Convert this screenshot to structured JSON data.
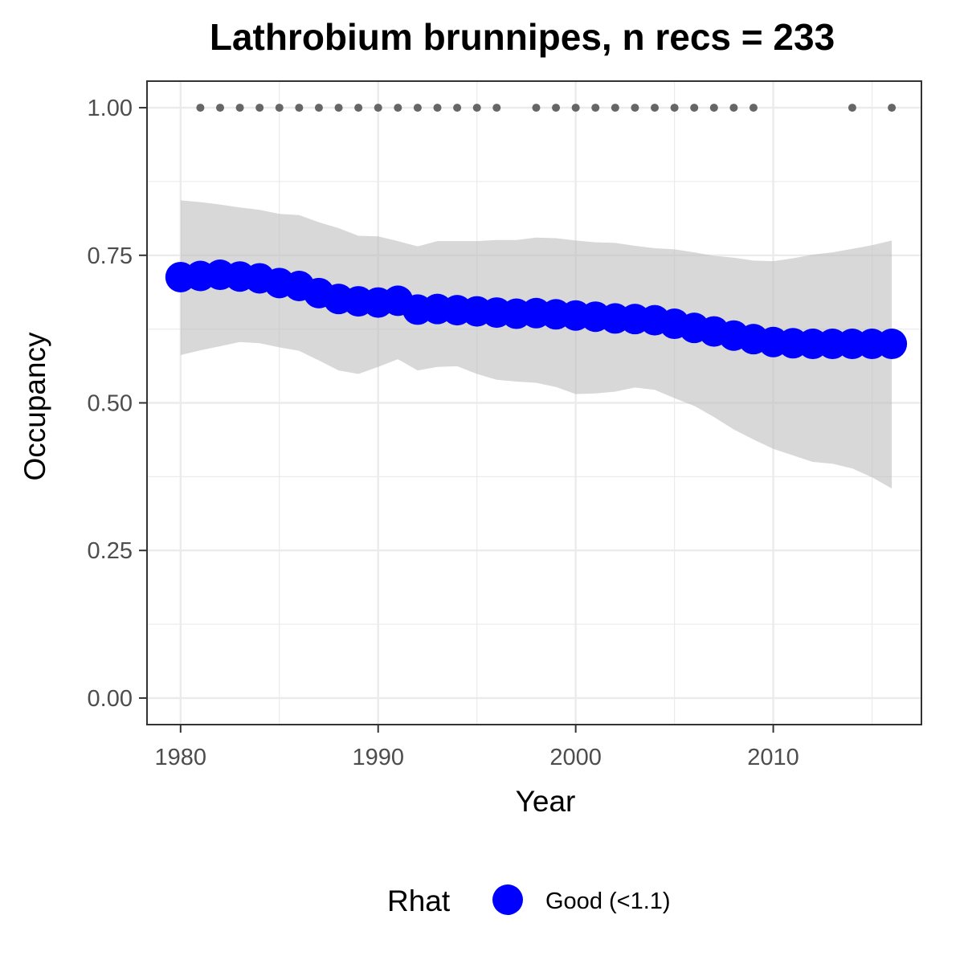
{
  "chart_data": {
    "type": "line",
    "title": "Lathrobium brunnipes, n recs = 233",
    "xlabel": "Year",
    "ylabel": "Occupancy",
    "xlim": [
      1978.3,
      2017.5
    ],
    "ylim": [
      -0.045,
      1.045
    ],
    "x_ticks": [
      1980,
      1990,
      2000,
      2010
    ],
    "x_tick_labels": [
      "1980",
      "1990",
      "2000",
      "2010"
    ],
    "y_ticks": [
      0,
      0.25,
      0.5,
      0.75,
      1.0
    ],
    "y_tick_labels": [
      "0.00",
      "0.25",
      "0.50",
      "0.75",
      "1.00"
    ],
    "grid": true,
    "series": [
      {
        "name": "Good (<1.1)",
        "x": [
          1980,
          1981,
          1982,
          1983,
          1984,
          1985,
          1986,
          1987,
          1988,
          1989,
          1990,
          1991,
          1992,
          1993,
          1994,
          1995,
          1996,
          1997,
          1998,
          1999,
          2000,
          2001,
          2002,
          2003,
          2004,
          2005,
          2006,
          2007,
          2008,
          2009,
          2010,
          2011,
          2012,
          2013,
          2014,
          2015,
          2016
        ],
        "y": [
          0.713,
          0.715,
          0.717,
          0.714,
          0.711,
          0.703,
          0.698,
          0.686,
          0.676,
          0.672,
          0.67,
          0.673,
          0.658,
          0.659,
          0.657,
          0.655,
          0.653,
          0.651,
          0.652,
          0.65,
          0.648,
          0.646,
          0.643,
          0.642,
          0.64,
          0.634,
          0.627,
          0.621,
          0.614,
          0.608,
          0.603,
          0.601,
          0.6,
          0.6,
          0.6,
          0.6,
          0.6
        ],
        "lower": [
          0.581,
          0.589,
          0.596,
          0.603,
          0.601,
          0.594,
          0.588,
          0.572,
          0.555,
          0.549,
          0.561,
          0.574,
          0.555,
          0.561,
          0.562,
          0.549,
          0.539,
          0.536,
          0.534,
          0.527,
          0.515,
          0.516,
          0.519,
          0.526,
          0.522,
          0.508,
          0.495,
          0.476,
          0.455,
          0.438,
          0.422,
          0.411,
          0.4,
          0.397,
          0.389,
          0.374,
          0.355
        ],
        "upper": [
          0.843,
          0.84,
          0.836,
          0.831,
          0.827,
          0.82,
          0.818,
          0.806,
          0.796,
          0.783,
          0.782,
          0.774,
          0.765,
          0.774,
          0.774,
          0.774,
          0.776,
          0.776,
          0.78,
          0.779,
          0.775,
          0.772,
          0.771,
          0.766,
          0.762,
          0.76,
          0.755,
          0.749,
          0.746,
          0.741,
          0.74,
          0.745,
          0.751,
          0.755,
          0.761,
          0.767,
          0.775
        ],
        "color": "#0000ff"
      }
    ],
    "records": {
      "x": [
        1981,
        1982,
        1983,
        1984,
        1985,
        1986,
        1987,
        1988,
        1989,
        1990,
        1991,
        1992,
        1993,
        1994,
        1995,
        1996,
        1998,
        1999,
        2000,
        2001,
        2002,
        2003,
        2004,
        2005,
        2006,
        2007,
        2008,
        2009,
        2014,
        2016
      ],
      "y": 1.0,
      "color": "#666666"
    },
    "ribbon_color": "#bebebe",
    "legend": {
      "position": "bottom",
      "title": "Rhat",
      "entries": [
        {
          "label": "Good (<1.1)",
          "color": "#0000ff"
        }
      ]
    }
  }
}
